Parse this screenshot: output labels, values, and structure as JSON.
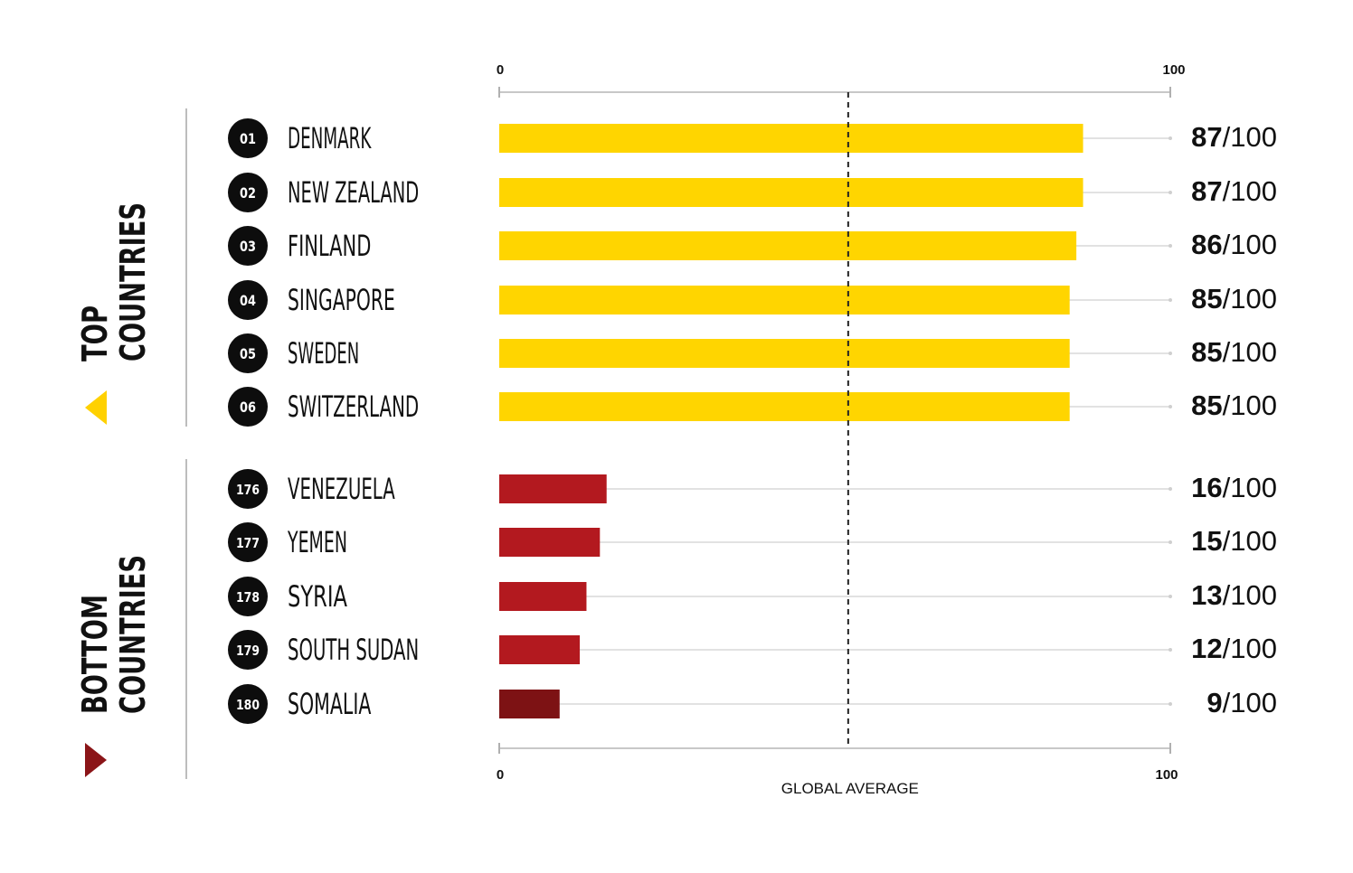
{
  "chart_data": {
    "type": "bar",
    "axis": {
      "min_label": "0",
      "max_label": "100",
      "min": 0,
      "max": 100
    },
    "reference_line": {
      "label": "GLOBAL AVERAGE",
      "value": 52
    },
    "score_suffix": "/100",
    "groups": [
      {
        "label_line1": "TOP",
        "label_line2": "COUNTRIES",
        "marker": "triangle-left-icon",
        "marker_color": "#FFD100",
        "rows": [
          {
            "rank": "01",
            "country": "DENMARK",
            "value": 87,
            "score": "87",
            "color": "#FFD500"
          },
          {
            "rank": "02",
            "country": "NEW ZEALAND",
            "value": 87,
            "score": "87",
            "color": "#FFD500"
          },
          {
            "rank": "03",
            "country": "FINLAND",
            "value": 86,
            "score": "86",
            "color": "#FFD500"
          },
          {
            "rank": "04",
            "country": "SINGAPORE",
            "value": 85,
            "score": "85",
            "color": "#FFD500"
          },
          {
            "rank": "05",
            "country": "SWEDEN",
            "value": 85,
            "score": "85",
            "color": "#FFD500"
          },
          {
            "rank": "06",
            "country": "SWITZERLAND",
            "value": 85,
            "score": "85",
            "color": "#FFD500"
          }
        ]
      },
      {
        "label_line1": "BOTTOM",
        "label_line2": "COUNTRIES",
        "marker": "triangle-right-icon",
        "marker_color": "#8B1518",
        "rows": [
          {
            "rank": "176",
            "country": "VENEZUELA",
            "value": 16,
            "score": "16",
            "color": "#B3191F"
          },
          {
            "rank": "177",
            "country": "YEMEN",
            "value": 15,
            "score": "15",
            "color": "#B3191F"
          },
          {
            "rank": "178",
            "country": "SYRIA",
            "value": 13,
            "score": "13",
            "color": "#B3191F"
          },
          {
            "rank": "179",
            "country": "SOUTH SUDAN",
            "value": 12,
            "score": "12",
            "color": "#B3191F"
          },
          {
            "rank": "180",
            "country": "SOMALIA",
            "value": 9,
            "score": "9",
            "color": "#7D1214"
          }
        ]
      }
    ]
  }
}
